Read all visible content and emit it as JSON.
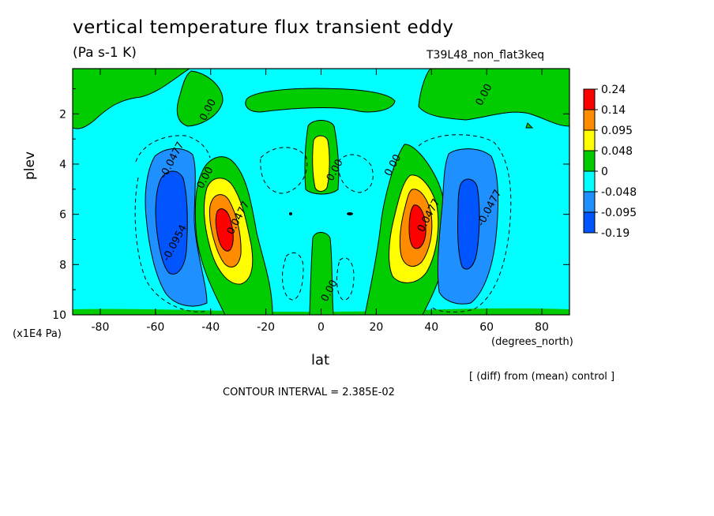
{
  "title": "vertical temperature flux transient eddy",
  "units": "(Pa s-1 K)",
  "run_label": "T39L48_non_flat3keq",
  "y_multiplier": "(x1E4 Pa)",
  "x_units": "(degrees_north)",
  "diff_note": "[ (diff) from (mean) control ]",
  "contour_interval_text": "CONTOUR INTERVAL = 2.385E-02",
  "chart_data": {
    "type": "heatmap",
    "title": "vertical temperature flux transient eddy",
    "xlabel": "lat",
    "ylabel": "plev",
    "xlim": [
      -90,
      90
    ],
    "ylim": [
      10,
      0.2
    ],
    "x_ticks": [
      -80,
      -60,
      -40,
      -20,
      0,
      20,
      40,
      60,
      80
    ],
    "x_tick_labels": [
      "-80",
      "-60",
      "-40",
      "-20",
      "0",
      "20",
      "40",
      "60",
      "80"
    ],
    "y_ticks": [
      2,
      4,
      6,
      8,
      10
    ],
    "y_tick_labels": [
      "2",
      "4",
      "6",
      "8",
      "10"
    ],
    "contour_interval": 0.02385,
    "colorbar": {
      "levels": [
        "0.24",
        "0.14",
        "0.095",
        "0.048",
        "0",
        "-0.048",
        "-0.095",
        "-0.19"
      ],
      "colors": [
        "#ff0000",
        "#ff8c00",
        "#ffff00",
        "#00cc00",
        "#00ffff",
        "#1e90ff",
        "#0055ff"
      ]
    },
    "contour_labels": [
      {
        "text": "0.00",
        "x": -40,
        "y": 1.9
      },
      {
        "text": "0.00",
        "x": 60,
        "y": 1.3
      },
      {
        "text": "-0.0477",
        "x": -53,
        "y": 3.9
      },
      {
        "text": "0.00",
        "x": -41,
        "y": 4.6
      },
      {
        "text": "0.0477",
        "x": -29,
        "y": 6.2
      },
      {
        "text": "0.00",
        "x": 6,
        "y": 4.3
      },
      {
        "text": "0.00",
        "x": 27,
        "y": 4.1
      },
      {
        "text": "0.0477",
        "x": 40,
        "y": 6.1
      },
      {
        "text": "-0.0477",
        "x": 62,
        "y": 5.8
      },
      {
        "text": "-0.0954",
        "x": -52,
        "y": 7.2
      },
      {
        "text": "0.00",
        "x": 4,
        "y": 9.1
      }
    ],
    "features": [
      {
        "name": "negative-core-south",
        "lat": -55,
        "plev": 6.5,
        "level": "-0.095"
      },
      {
        "name": "negative-core-north",
        "lat": 51,
        "plev": 6.0,
        "level": "-0.095"
      },
      {
        "name": "positive-core-south",
        "lat": -35,
        "plev": 6.6,
        "level": "0.14"
      },
      {
        "name": "positive-core-north",
        "lat": 34,
        "plev": 6.6,
        "level": "0.14"
      },
      {
        "name": "equatorial-maximum",
        "lat": 0,
        "plev": 3.8,
        "level": "0.048"
      }
    ]
  }
}
